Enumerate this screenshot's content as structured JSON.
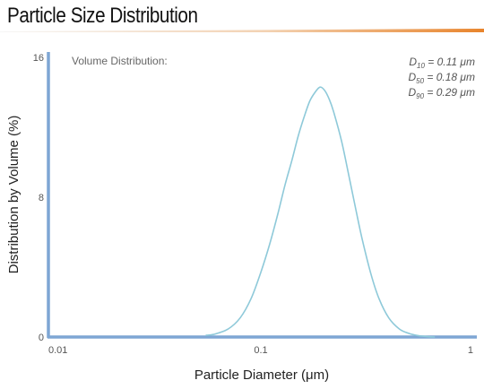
{
  "title": "Particle Size Distribution",
  "colors": {
    "axis": "#7ea6d4",
    "curve": "#8ec9d9",
    "accent": "#e8842c"
  },
  "chart_data": {
    "type": "line",
    "title": "Particle Size Distribution",
    "subtitle": "Volume Distribution:",
    "xlabel": "Particle Diameter (μm)",
    "ylabel": "Distribution by Volume (%)",
    "x_scale": "log",
    "xlim": [
      0.01,
      1
    ],
    "ylim": [
      0,
      16
    ],
    "x_ticks": [
      "0.01",
      "0.1",
      "1"
    ],
    "y_ticks": [
      "0",
      "8",
      "16"
    ],
    "grid": false,
    "stats": [
      {
        "symbol": "D",
        "sub": "10",
        "value": " = 0.11 μm"
      },
      {
        "symbol": "D",
        "sub": "50",
        "value": " = 0.18 μm"
      },
      {
        "symbol": "D",
        "sub": "90",
        "value": " = 0.29 μm"
      }
    ],
    "series": [
      {
        "x": [
          0.055,
          0.06,
          0.07,
          0.08,
          0.09,
          0.1,
          0.11,
          0.12,
          0.13,
          0.14,
          0.15,
          0.16,
          0.17,
          0.18,
          0.19,
          0.2,
          0.21,
          0.22,
          0.24,
          0.26,
          0.28,
          0.3,
          0.33,
          0.36,
          0.4,
          0.45,
          0.5,
          0.55,
          0.6,
          0.66
        ],
        "y": [
          0.1,
          0.15,
          0.45,
          1.1,
          2.2,
          3.7,
          5.3,
          7.0,
          8.7,
          10.1,
          11.5,
          12.6,
          13.5,
          14.0,
          14.3,
          14.1,
          13.6,
          12.9,
          11.2,
          9.2,
          7.3,
          5.6,
          3.6,
          2.2,
          1.1,
          0.45,
          0.2,
          0.08,
          0.03,
          0.0
        ]
      }
    ]
  }
}
